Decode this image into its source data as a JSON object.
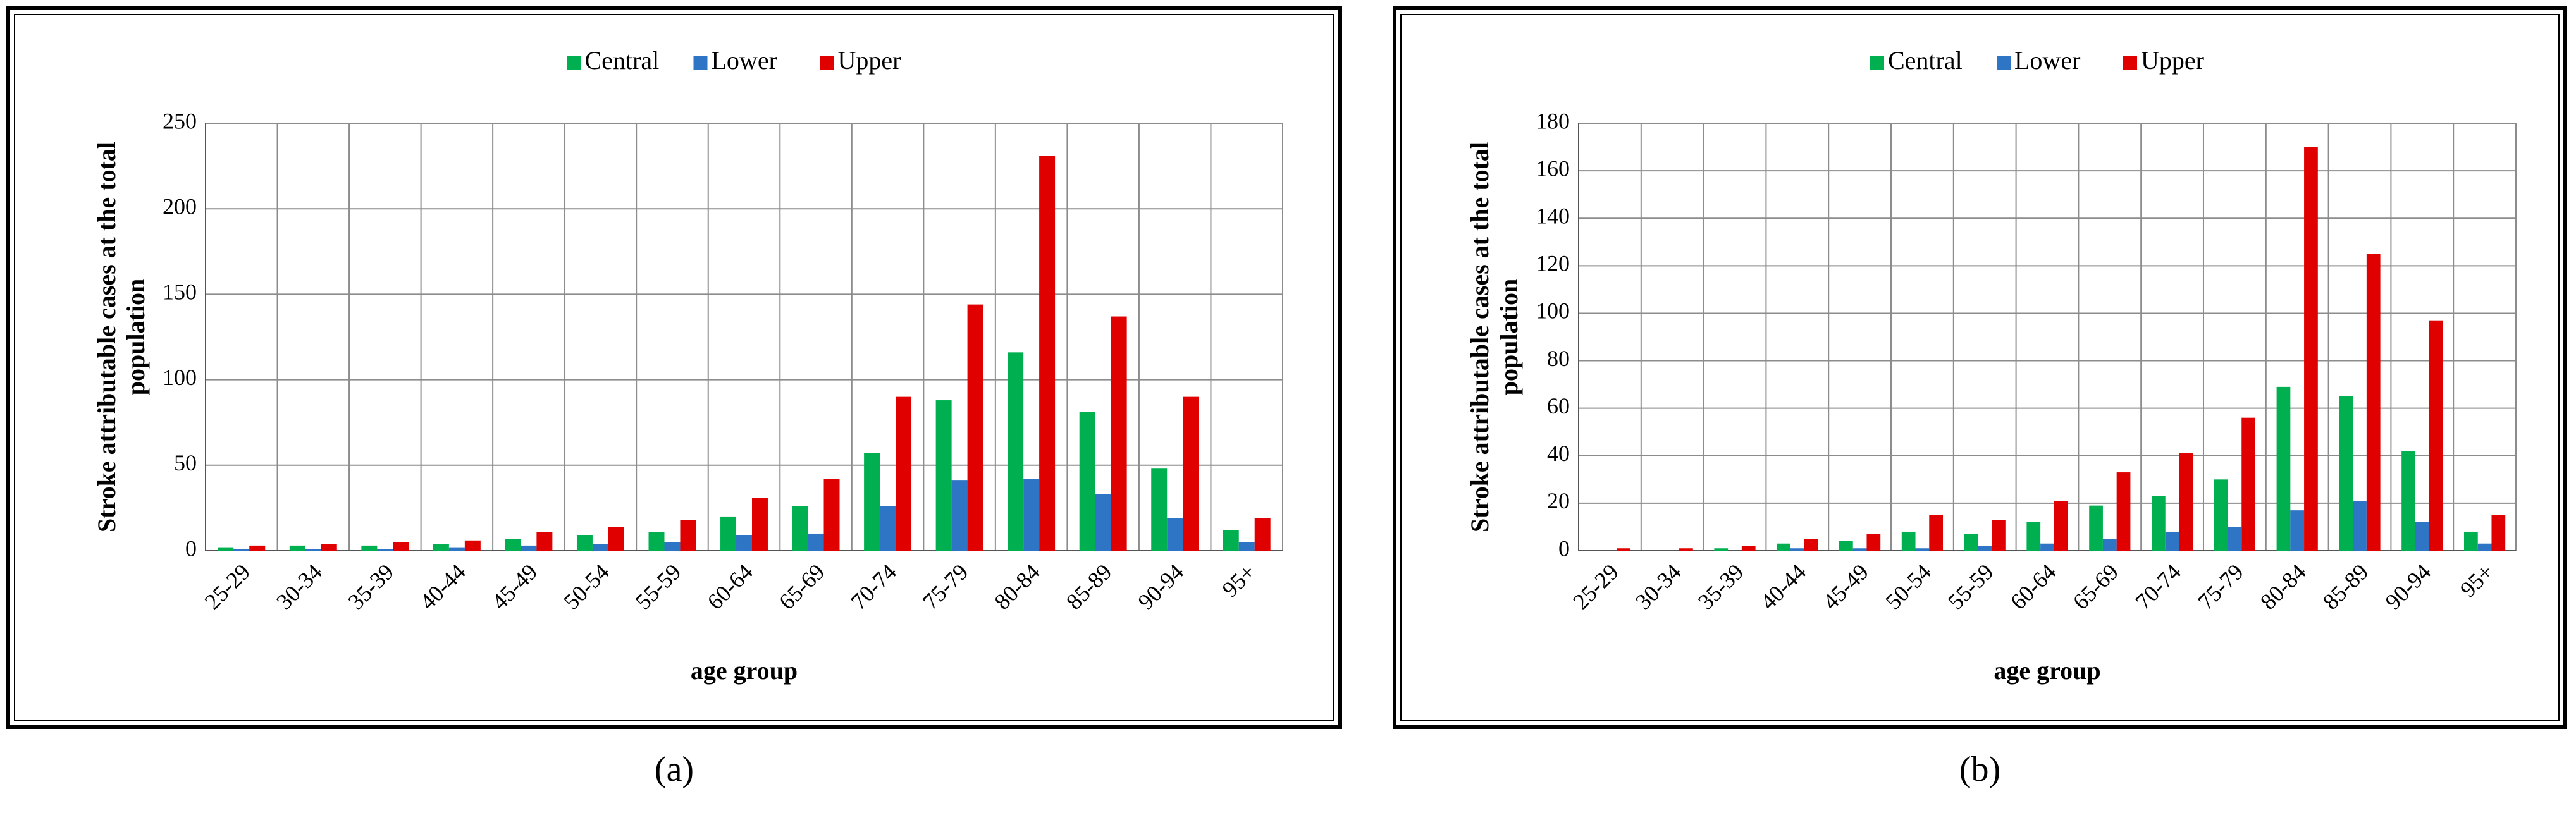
{
  "chart_data": [
    {
      "type": "bar",
      "panel_label": "(a)",
      "xlabel": "age group",
      "ylabel": [
        "Stroke attributable cases at the total",
        "population"
      ],
      "categories": [
        "25-29",
        "30-34",
        "35-39",
        "40-44",
        "45-49",
        "50-54",
        "55-59",
        "60-64",
        "65-69",
        "70-74",
        "75-79",
        "80-84",
        "85-89",
        "90-94",
        "95+"
      ],
      "series": [
        {
          "name": "Central",
          "color": "#00b050",
          "values": [
            2,
            3,
            3,
            4,
            7,
            9,
            11,
            20,
            26,
            57,
            88,
            116,
            81,
            48,
            12
          ]
        },
        {
          "name": "Lower",
          "color": "#2e75c6",
          "values": [
            1,
            1,
            1,
            2,
            3,
            4,
            5,
            9,
            10,
            26,
            41,
            42,
            33,
            19,
            5
          ]
        },
        {
          "name": "Upper",
          "color": "#e00000",
          "values": [
            3,
            4,
            5,
            6,
            11,
            14,
            18,
            31,
            42,
            90,
            144,
            231,
            137,
            90,
            19
          ]
        }
      ],
      "ylim": [
        0,
        250
      ],
      "yticks": [
        0,
        50,
        100,
        150,
        200,
        250
      ],
      "grid": true,
      "legend": "top"
    },
    {
      "type": "bar",
      "panel_label": "(b)",
      "xlabel": "age group",
      "ylabel": [
        "Stroke attributable cases at the total",
        "population"
      ],
      "categories": [
        "25-29",
        "30-34",
        "35-39",
        "40-44",
        "45-49",
        "50-54",
        "55-59",
        "60-64",
        "65-69",
        "70-74",
        "75-79",
        "80-84",
        "85-89",
        "90-94",
        "95+"
      ],
      "series": [
        {
          "name": "Central",
          "color": "#00b050",
          "values": [
            0,
            0,
            1,
            3,
            4,
            8,
            7,
            12,
            19,
            23,
            30,
            69,
            65,
            42,
            8
          ]
        },
        {
          "name": "Lower",
          "color": "#2e75c6",
          "values": [
            0,
            0,
            0,
            1,
            1,
            1,
            2,
            3,
            5,
            8,
            10,
            17,
            21,
            12,
            3
          ]
        },
        {
          "name": "Upper",
          "color": "#e00000",
          "values": [
            1,
            1,
            2,
            5,
            7,
            15,
            13,
            21,
            33,
            41,
            56,
            170,
            125,
            97,
            15
          ]
        }
      ],
      "ylim": [
        0,
        180
      ],
      "yticks": [
        0,
        20,
        40,
        60,
        80,
        100,
        120,
        140,
        160,
        180
      ],
      "grid": true,
      "legend": "top"
    }
  ]
}
